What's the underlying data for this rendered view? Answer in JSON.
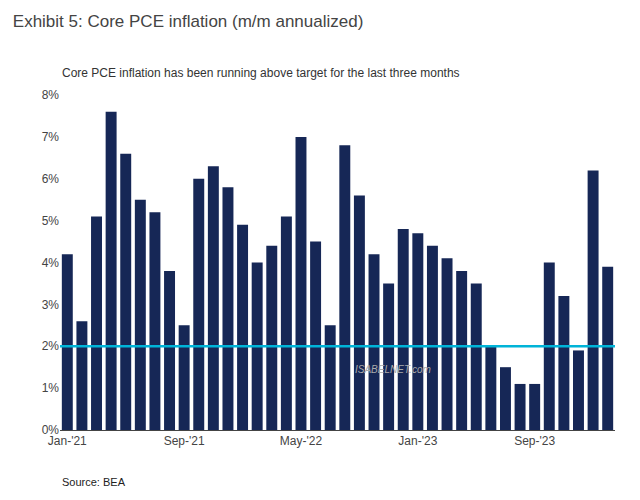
{
  "chart_data": {
    "type": "bar",
    "title": "Exhibit 5: Core PCE inflation (m/m annualized)",
    "subtitle": "Core PCE inflation has been running above target for the last three months",
    "source": "Source: BEA",
    "watermark": "ISABELNET.com",
    "categories": [
      "Jan-'21",
      null,
      null,
      null,
      null,
      null,
      null,
      null,
      "Sep-'21",
      null,
      null,
      null,
      null,
      null,
      null,
      null,
      "May-'22",
      null,
      null,
      null,
      null,
      null,
      null,
      null,
      "Jan-'23",
      null,
      null,
      null,
      null,
      null,
      null,
      null,
      "Sep-'23",
      null,
      null,
      null,
      null,
      null
    ],
    "values": [
      4.2,
      2.6,
      5.1,
      7.6,
      6.6,
      5.5,
      5.2,
      3.8,
      2.5,
      6.0,
      6.3,
      5.8,
      4.9,
      4.0,
      4.4,
      5.1,
      7.0,
      4.5,
      2.5,
      6.8,
      5.6,
      4.2,
      3.5,
      4.8,
      4.7,
      4.4,
      4.1,
      3.8,
      3.5,
      2.0,
      1.5,
      1.1,
      1.1,
      4.0,
      3.2,
      1.9,
      6.2,
      3.9
    ],
    "color": "#162756",
    "target_line": {
      "value": 2.0,
      "color": "#00b4d8"
    },
    "ylim": [
      0,
      8
    ],
    "yticks": [
      {
        "value": 0,
        "label": "0%"
      },
      {
        "value": 1,
        "label": "1%"
      },
      {
        "value": 2,
        "label": "2%"
      },
      {
        "value": 3,
        "label": "3%"
      },
      {
        "value": 4,
        "label": "4%"
      },
      {
        "value": 5,
        "label": "5%"
      },
      {
        "value": 6,
        "label": "6%"
      },
      {
        "value": 7,
        "label": "7%"
      },
      {
        "value": 8,
        "label": "8%"
      }
    ],
    "grid": false
  }
}
